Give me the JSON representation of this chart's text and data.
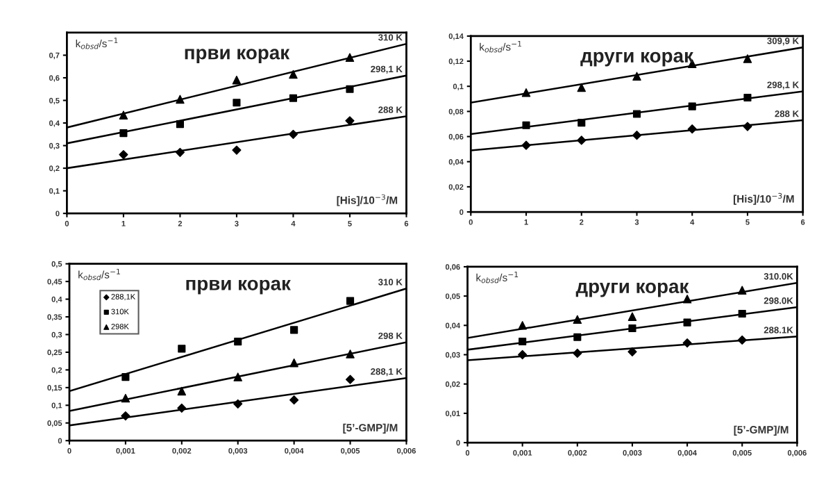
{
  "chart_data": [
    {
      "type": "scatter",
      "title": "први корак",
      "xlabel": "[His]/10$^{−3}$/M",
      "ylabel": "k$_{obsd}$/s$^{−1}$",
      "x": [
        1,
        2,
        3,
        4,
        5
      ],
      "xlim": [
        0,
        6
      ],
      "xticks": [
        0,
        1,
        2,
        3,
        4,
        5,
        6
      ],
      "ylim": [
        0,
        0.8
      ],
      "yticks": [
        0,
        {
          "value": 0.1,
          "label": "0,1"
        },
        {
          "value": 0.2,
          "label": "0,2"
        },
        {
          "value": 0.3,
          "label": "0,3"
        },
        {
          "value": 0.4,
          "label": "0,4"
        },
        {
          "value": 0.5,
          "label": "0,5"
        },
        {
          "value": 0.6,
          "label": "0,6"
        },
        {
          "value": 0.7,
          "label": "0,7"
        }
      ],
      "grid": false,
      "legend": false,
      "series": [
        {
          "marker": "triangle",
          "color": "#000000",
          "values": [
            0.435,
            0.505,
            0.59,
            0.615,
            0.69
          ]
        },
        {
          "marker": "square",
          "color": "#000000",
          "values": [
            0.355,
            0.395,
            0.49,
            0.51,
            0.55
          ]
        },
        {
          "marker": "diamond",
          "color": "#000000",
          "values": [
            0.26,
            0.27,
            0.28,
            0.35,
            0.41
          ]
        },
        {
          "type": "line",
          "name": "310 K",
          "color": "#000000",
          "x": [
            0,
            6
          ],
          "values": [
            0.38,
            0.75
          ]
        },
        {
          "type": "line",
          "name": "298,1 K",
          "color": "#000000",
          "x": [
            0,
            6
          ],
          "values": [
            0.31,
            0.61
          ]
        },
        {
          "type": "line",
          "name": "288 K",
          "color": "#000000",
          "x": [
            0,
            6
          ],
          "values": [
            0.2,
            0.43
          ]
        }
      ]
    },
    {
      "type": "scatter",
      "title": "други корак",
      "xlabel": "[His]/10$^{−3}$/M",
      "ylabel": "k$_{obsd}$/s$^{−1}$",
      "x": [
        1,
        2,
        3,
        4,
        5
      ],
      "xlim": [
        0,
        6
      ],
      "xticks": [
        0,
        1,
        2,
        3,
        4,
        5,
        6
      ],
      "ylim": [
        0,
        0.14
      ],
      "yticks": [
        0,
        {
          "value": 0.02,
          "label": "0,02"
        },
        {
          "value": 0.04,
          "label": "0,04"
        },
        {
          "value": 0.06,
          "label": "0,06"
        },
        {
          "value": 0.08,
          "label": "0,08"
        },
        {
          "value": 0.1,
          "label": "0,1"
        },
        {
          "value": 0.12,
          "label": "0,12"
        },
        {
          "value": 0.14,
          "label": "0,14"
        }
      ],
      "grid": false,
      "legend": false,
      "series": [
        {
          "marker": "triangle",
          "color": "#000000",
          "values": [
            0.095,
            0.099,
            0.108,
            0.118,
            0.122
          ]
        },
        {
          "marker": "square",
          "color": "#000000",
          "values": [
            0.069,
            0.071,
            0.078,
            0.084,
            0.091
          ]
        },
        {
          "marker": "diamond",
          "color": "#000000",
          "values": [
            0.053,
            0.057,
            0.061,
            0.066,
            0.068
          ]
        },
        {
          "type": "line",
          "name": "309,9 K",
          "color": "#000000",
          "x": [
            0,
            6
          ],
          "values": [
            0.087,
            0.131
          ]
        },
        {
          "type": "line",
          "name": "298,1 K",
          "color": "#000000",
          "x": [
            0,
            6
          ],
          "values": [
            0.062,
            0.096
          ]
        },
        {
          "type": "line",
          "name": "288 K",
          "color": "#000000",
          "x": [
            0,
            6
          ],
          "values": [
            0.049,
            0.073
          ]
        }
      ]
    },
    {
      "type": "scatter",
      "title": "први корак",
      "xlabel": "[5’-GMP]/M",
      "ylabel": "k$_{obsd}$/s$^{−1}$",
      "x": [
        0.001,
        0.002,
        0.003,
        0.004,
        0.005
      ],
      "xlim": [
        0,
        0.006
      ],
      "xticks": [
        0,
        {
          "value": 0.001,
          "label": "0,001"
        },
        {
          "value": 0.002,
          "label": "0,002"
        },
        {
          "value": 0.003,
          "label": "0,003"
        },
        {
          "value": 0.004,
          "label": "0,004"
        },
        {
          "value": 0.005,
          "label": "0,005"
        },
        {
          "value": 0.006,
          "label": "0,006"
        }
      ],
      "ylim": [
        0,
        0.5
      ],
      "yticks": [
        0,
        {
          "value": 0.05,
          "label": "0,05"
        },
        {
          "value": 0.1,
          "label": "0,1"
        },
        {
          "value": 0.15,
          "label": "0,15"
        },
        {
          "value": 0.2,
          "label": "0,2"
        },
        {
          "value": 0.25,
          "label": "0,25"
        },
        {
          "value": 0.3,
          "label": "0,3"
        },
        {
          "value": 0.35,
          "label": "0,35"
        },
        {
          "value": 0.4,
          "label": "0,4"
        },
        {
          "value": 0.45,
          "label": "0,45"
        },
        {
          "value": 0.5,
          "label": "0,5"
        }
      ],
      "grid": false,
      "legend": "top left",
      "series": [
        {
          "name": "288,1K",
          "marker": "diamond",
          "color": "#000000",
          "values": [
            0.07,
            0.092,
            0.104,
            0.115,
            0.173
          ]
        },
        {
          "name": "310K",
          "marker": "square",
          "color": "#000000",
          "values": [
            0.18,
            0.26,
            0.28,
            0.313,
            0.395
          ]
        },
        {
          "name": "298K",
          "marker": "triangle",
          "color": "#000000",
          "values": [
            0.12,
            0.14,
            0.18,
            0.22,
            0.245
          ]
        },
        {
          "type": "line",
          "name": "310 K",
          "color": "#000000",
          "x": [
            0,
            0.006
          ],
          "values": [
            0.14,
            0.43
          ]
        },
        {
          "type": "line",
          "name": "298 K",
          "color": "#000000",
          "x": [
            0,
            0.006
          ],
          "values": [
            0.084,
            0.278
          ]
        },
        {
          "type": "line",
          "name": "288,1 K",
          "color": "#000000",
          "x": [
            0,
            0.006
          ],
          "values": [
            0.043,
            0.177
          ]
        }
      ]
    },
    {
      "type": "scatter",
      "title": "други корак",
      "xlabel": "[5’-GMP]/M",
      "ylabel": "k$_{obsd}$/s$^{−1}$",
      "x": [
        0.001,
        0.002,
        0.003,
        0.004,
        0.005
      ],
      "xlim": [
        0,
        0.006
      ],
      "xticks": [
        0,
        {
          "value": 0.001,
          "label": "0,001"
        },
        {
          "value": 0.002,
          "label": "0,002"
        },
        {
          "value": 0.003,
          "label": "0,003"
        },
        {
          "value": 0.004,
          "label": "0,004"
        },
        {
          "value": 0.005,
          "label": "0,005"
        },
        {
          "value": 0.006,
          "label": "0,006"
        }
      ],
      "ylim": [
        0,
        0.06
      ],
      "yticks": [
        0,
        {
          "value": 0.01,
          "label": "0,01"
        },
        {
          "value": 0.02,
          "label": "0,02"
        },
        {
          "value": 0.03,
          "label": "0,03"
        },
        {
          "value": 0.04,
          "label": "0,04"
        },
        {
          "value": 0.05,
          "label": "0,05"
        },
        {
          "value": 0.06,
          "label": "0,06"
        }
      ],
      "grid": false,
      "legend": false,
      "series": [
        {
          "marker": "triangle",
          "color": "#000000",
          "values": [
            0.04,
            0.042,
            0.043,
            0.049,
            0.052
          ]
        },
        {
          "marker": "square",
          "color": "#000000",
          "values": [
            0.0345,
            0.036,
            0.039,
            0.041,
            0.044
          ]
        },
        {
          "marker": "diamond",
          "color": "#000000",
          "values": [
            0.03,
            0.0305,
            0.031,
            0.034,
            0.035
          ]
        },
        {
          "type": "line",
          "name": "310.0K",
          "color": "#000000",
          "x": [
            0,
            0.006
          ],
          "values": [
            0.0357,
            0.0545
          ]
        },
        {
          "type": "line",
          "name": "298.0K",
          "color": "#000000",
          "x": [
            0,
            0.006
          ],
          "values": [
            0.0317,
            0.0462
          ]
        },
        {
          "type": "line",
          "name": "288.1K",
          "color": "#000000",
          "x": [
            0,
            0.006
          ],
          "values": [
            0.0281,
            0.0362
          ]
        }
      ]
    }
  ]
}
